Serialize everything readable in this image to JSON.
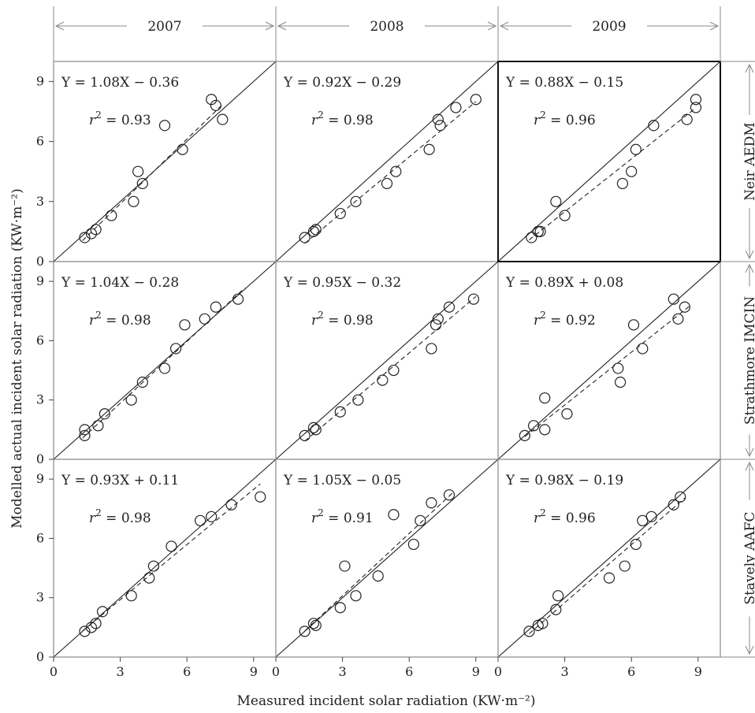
{
  "chart_data": {
    "type": "scatter",
    "xlabel": "Measured incident solar radiation (KW·m⁻²)",
    "ylabel": "Modelled actual incident solar radiation (KW·m⁻²)",
    "column_headers": [
      "2007",
      "2008",
      "2009"
    ],
    "row_labels": [
      "Neir AEDM",
      "Strathmore IMCIN",
      "Stavely AAFC"
    ],
    "xlim": [
      0,
      10
    ],
    "ylim": [
      0,
      10
    ],
    "x_ticks": [
      "0",
      "3",
      "6",
      "9"
    ],
    "y_ticks": [
      "0",
      "3",
      "6",
      "9"
    ],
    "panels": [
      {
        "row": 0,
        "col": 0,
        "column": "2007",
        "row_label": "Neir AEDM",
        "equation": "Y = 1.08X − 0.36",
        "r2": "= 0.93",
        "slope": 1.08,
        "intercept": -0.36,
        "fit_x": [
          1.3,
          7.6
        ],
        "points": [
          [
            1.4,
            1.2
          ],
          [
            1.7,
            1.4
          ],
          [
            1.9,
            1.6
          ],
          [
            2.6,
            2.3
          ],
          [
            3.6,
            3.0
          ],
          [
            3.8,
            4.5
          ],
          [
            4.0,
            3.9
          ],
          [
            5.0,
            6.8
          ],
          [
            5.8,
            5.6
          ],
          [
            7.1,
            8.1
          ],
          [
            7.3,
            7.8
          ],
          [
            7.6,
            7.1
          ]
        ]
      },
      {
        "row": 0,
        "col": 1,
        "column": "2008",
        "row_label": "Neir AEDM",
        "equation": "Y = 0.92X − 0.29",
        "r2": "= 0.98",
        "slope": 0.92,
        "intercept": -0.29,
        "fit_x": [
          1.3,
          9.0
        ],
        "points": [
          [
            1.3,
            1.2
          ],
          [
            1.7,
            1.5
          ],
          [
            1.8,
            1.6
          ],
          [
            2.9,
            2.4
          ],
          [
            3.6,
            3.0
          ],
          [
            5.0,
            3.9
          ],
          [
            5.4,
            4.5
          ],
          [
            6.9,
            5.6
          ],
          [
            7.3,
            7.1
          ],
          [
            7.4,
            6.8
          ],
          [
            8.1,
            7.7
          ],
          [
            9.0,
            8.1
          ]
        ]
      },
      {
        "row": 0,
        "col": 2,
        "column": "2009",
        "row_label": "Neir AEDM",
        "equation": "Y = 0.88X − 0.15",
        "r2": "= 0.96",
        "slope": 0.88,
        "intercept": -0.15,
        "fit_x": [
          1.4,
          8.9
        ],
        "points": [
          [
            1.5,
            1.2
          ],
          [
            1.8,
            1.5
          ],
          [
            1.9,
            1.5
          ],
          [
            2.6,
            3.0
          ],
          [
            3.0,
            2.3
          ],
          [
            5.6,
            3.9
          ],
          [
            6.0,
            4.5
          ],
          [
            6.2,
            5.6
          ],
          [
            7.0,
            6.8
          ],
          [
            8.5,
            7.1
          ],
          [
            8.9,
            8.1
          ],
          [
            8.9,
            7.7
          ]
        ]
      },
      {
        "row": 1,
        "col": 0,
        "column": "2007",
        "row_label": "Strathmore IMCIN",
        "equation": "Y = 1.04X − 0.28",
        "r2": "= 0.98",
        "slope": 1.04,
        "intercept": -0.28,
        "fit_x": [
          1.3,
          8.6
        ],
        "points": [
          [
            1.4,
            1.2
          ],
          [
            1.4,
            1.5
          ],
          [
            2.0,
            1.7
          ],
          [
            2.3,
            2.3
          ],
          [
            3.5,
            3.0
          ],
          [
            4.0,
            3.9
          ],
          [
            5.0,
            4.6
          ],
          [
            5.5,
            5.6
          ],
          [
            5.9,
            6.8
          ],
          [
            6.8,
            7.1
          ],
          [
            7.3,
            7.7
          ],
          [
            8.3,
            8.1
          ]
        ]
      },
      {
        "row": 1,
        "col": 1,
        "column": "2008",
        "row_label": "Strathmore IMCIN",
        "equation": "Y = 0.95X − 0.32",
        "r2": "= 0.98",
        "slope": 0.95,
        "intercept": -0.32,
        "fit_x": [
          1.3,
          9.0
        ],
        "points": [
          [
            1.3,
            1.2
          ],
          [
            1.7,
            1.6
          ],
          [
            1.8,
            1.5
          ],
          [
            2.9,
            2.4
          ],
          [
            3.7,
            3.0
          ],
          [
            4.8,
            4.0
          ],
          [
            5.3,
            4.5
          ],
          [
            7.0,
            5.6
          ],
          [
            7.2,
            6.8
          ],
          [
            7.3,
            7.1
          ],
          [
            7.8,
            7.7
          ],
          [
            8.9,
            8.1
          ]
        ]
      },
      {
        "row": 1,
        "col": 2,
        "column": "2009",
        "row_label": "Strathmore IMCIN",
        "equation": "Y = 0.89X + 0.08",
        "r2": "= 0.92",
        "slope": 0.89,
        "intercept": 0.08,
        "fit_x": [
          1.2,
          8.7
        ],
        "points": [
          [
            1.2,
            1.2
          ],
          [
            1.6,
            1.7
          ],
          [
            2.1,
            3.1
          ],
          [
            2.1,
            1.5
          ],
          [
            3.1,
            2.3
          ],
          [
            5.4,
            4.6
          ],
          [
            5.5,
            3.9
          ],
          [
            6.1,
            6.8
          ],
          [
            6.5,
            5.6
          ],
          [
            7.9,
            8.1
          ],
          [
            8.1,
            7.1
          ],
          [
            8.4,
            7.7
          ]
        ]
      },
      {
        "row": 2,
        "col": 0,
        "column": "2007",
        "row_label": "Stavely AAFC",
        "equation": "Y = 0.93X + 0.11",
        "r2": "= 0.98",
        "slope": 0.93,
        "intercept": 0.11,
        "fit_x": [
          1.3,
          9.3
        ],
        "points": [
          [
            1.4,
            1.3
          ],
          [
            1.7,
            1.5
          ],
          [
            1.9,
            1.7
          ],
          [
            2.2,
            2.3
          ],
          [
            3.5,
            3.1
          ],
          [
            4.3,
            4.0
          ],
          [
            4.5,
            4.6
          ],
          [
            5.3,
            5.6
          ],
          [
            6.6,
            6.9
          ],
          [
            7.1,
            7.1
          ],
          [
            8.0,
            7.7
          ],
          [
            9.3,
            8.1
          ]
        ]
      },
      {
        "row": 2,
        "col": 1,
        "column": "2008",
        "row_label": "Stavely AAFC",
        "equation": "Y = 1.05X − 0.05",
        "r2": "= 0.91",
        "slope": 1.05,
        "intercept": -0.05,
        "fit_x": [
          1.3,
          8.0
        ],
        "points": [
          [
            1.3,
            1.3
          ],
          [
            1.7,
            1.7
          ],
          [
            1.8,
            1.6
          ],
          [
            2.9,
            2.5
          ],
          [
            3.1,
            4.6
          ],
          [
            3.6,
            3.1
          ],
          [
            4.6,
            4.1
          ],
          [
            5.3,
            7.2
          ],
          [
            6.2,
            5.7
          ],
          [
            6.5,
            6.9
          ],
          [
            7.0,
            7.8
          ],
          [
            7.8,
            8.2
          ]
        ]
      },
      {
        "row": 2,
        "col": 2,
        "column": "2009",
        "row_label": "Stavely AAFC",
        "equation": "Y = 0.98X − 0.19",
        "r2": "= 0.96",
        "slope": 0.98,
        "intercept": -0.19,
        "fit_x": [
          1.4,
          8.4
        ],
        "points": [
          [
            1.4,
            1.3
          ],
          [
            1.8,
            1.6
          ],
          [
            2.0,
            1.7
          ],
          [
            2.6,
            2.4
          ],
          [
            2.7,
            3.1
          ],
          [
            5.0,
            4.0
          ],
          [
            5.7,
            4.6
          ],
          [
            6.2,
            5.7
          ],
          [
            6.5,
            6.9
          ],
          [
            6.9,
            7.1
          ],
          [
            7.9,
            7.7
          ],
          [
            8.2,
            8.1
          ]
        ]
      }
    ]
  }
}
